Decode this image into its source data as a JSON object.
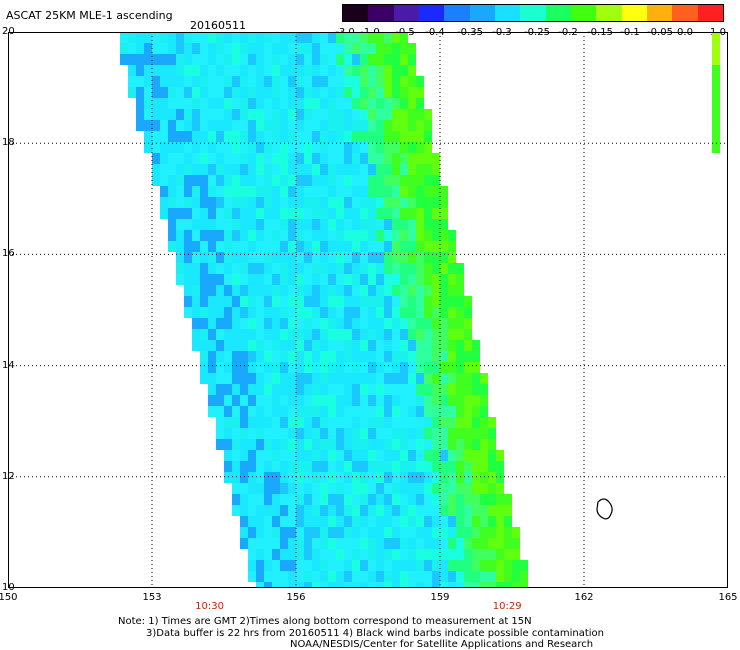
{
  "header": {
    "title": "ASCAT 25KM MLE-1 ascending",
    "date": "20160511"
  },
  "colorbar": {
    "labels": [
      "-3.0",
      "-1.0",
      "-0.5",
      "-0.4",
      "-0.35",
      "-0.3",
      "-0.25",
      "-0.2",
      "-0.15",
      "-0.1",
      "-0.05",
      "0.0",
      "1.0"
    ],
    "colors": [
      "#1a0018",
      "#3a0068",
      "#4a1aa8",
      "#1a2aff",
      "#1a80ff",
      "#1aa8ff",
      "#1ae0ff",
      "#1affd0",
      "#1aff60",
      "#40ff10",
      "#a0ff10",
      "#ffff10",
      "#ffb010",
      "#ff6020",
      "#ff2020"
    ]
  },
  "map": {
    "lon_ticks": [
      "150",
      "153",
      "156",
      "159",
      "162",
      "165"
    ],
    "lat_ticks": [
      "20",
      "18",
      "16",
      "14",
      "12",
      "10"
    ],
    "lon_range": [
      150,
      165
    ],
    "lat_range": [
      10,
      20
    ],
    "pass_times": [
      {
        "label": "10:30",
        "lon": 154.2
      },
      {
        "label": "10:29",
        "lon": 160.4
      }
    ]
  },
  "footer": {
    "note_line1": "Note: 1) Times are GMT 2)Times along bottom correspond to measurement at 15N",
    "note_line2": "3)Data buffer is 22 hrs from 20160511 4) Black wind barbs indicate possible contamination",
    "note_line3": "NOAA/NESDIS/Center for Satellite Applications and Research"
  }
}
